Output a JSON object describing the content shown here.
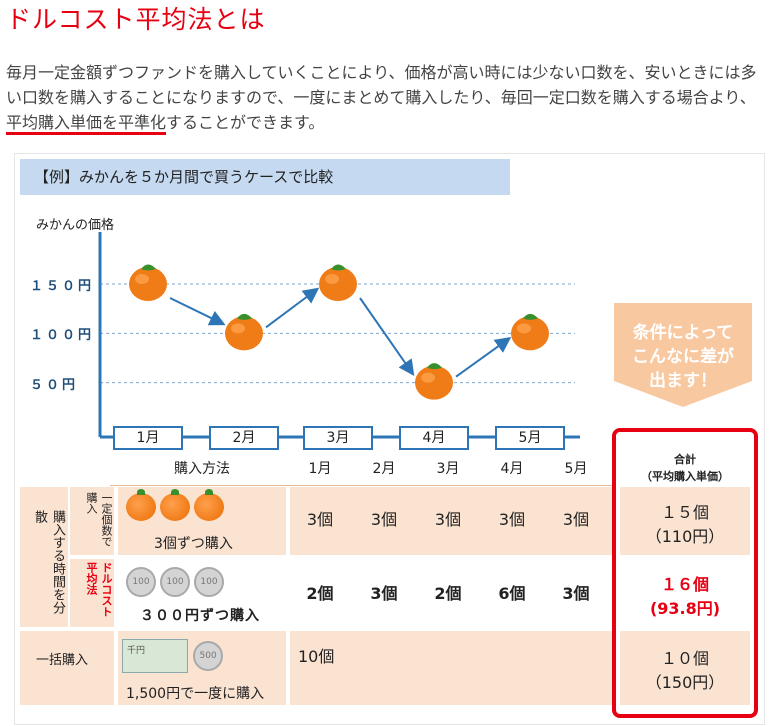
{
  "title": "ドルコスト平均法とは",
  "lead": {
    "part1": "毎月一定金額ずつファンドを購入していくことにより、価格が高い時には少ない口数を、安いときには多い口数を購入することになりますので、一度にまとめて購入したり、毎回一定口数を購入する場合より、",
    "emphasis": "平均購入単価を平準化",
    "part2": "することができます。"
  },
  "case_label": "【例】みかんを５か月間で買うケースで比較",
  "chart_data": {
    "type": "line",
    "ylabel": "みかんの価格",
    "y_ticks": [
      "１５０円",
      "１００円",
      "５０円"
    ],
    "categories": [
      "1月",
      "2月",
      "3月",
      "4月",
      "5月"
    ],
    "values": [
      150,
      100,
      150,
      50,
      100
    ],
    "ylim": [
      0,
      190
    ],
    "grid": "dashed horizontal"
  },
  "callout": {
    "line1": "条件によって",
    "line2": "こんなに差が",
    "line3": "出ます！"
  },
  "table": {
    "method_header": "購入方法",
    "months": [
      "1月",
      "2月",
      "3月",
      "4月",
      "5月"
    ],
    "total_header_1": "合計",
    "total_header_2": "（平均購入単価）",
    "group_label": "購入する時間を分散",
    "rows": [
      {
        "label": "一定個数で購入",
        "method": "3個ずつ購入",
        "values": [
          "3個",
          "3個",
          "3個",
          "3個",
          "3個"
        ],
        "total_1": "１５個",
        "total_2": "（110円）"
      },
      {
        "label": "ドルコスト平均法",
        "method": "３００円ずつ購入",
        "values": [
          "2個",
          "3個",
          "2個",
          "6個",
          "3個"
        ],
        "total_1": "１６個",
        "total_2": "(93.8円)"
      },
      {
        "label": "一括購入",
        "method": "1,500円で一度に購入",
        "values": [
          "10個"
        ],
        "total_1": "１０個",
        "total_2": "（150円）"
      }
    ],
    "coin_label": "100",
    "coin500_label": "500",
    "bill_label": "千円"
  },
  "colors": {
    "accent": "#e60012",
    "orange": "#f07c17",
    "axis_blue": "#2e75b6",
    "peach": "#fbe3d2",
    "callout": "#f8c9a0"
  }
}
